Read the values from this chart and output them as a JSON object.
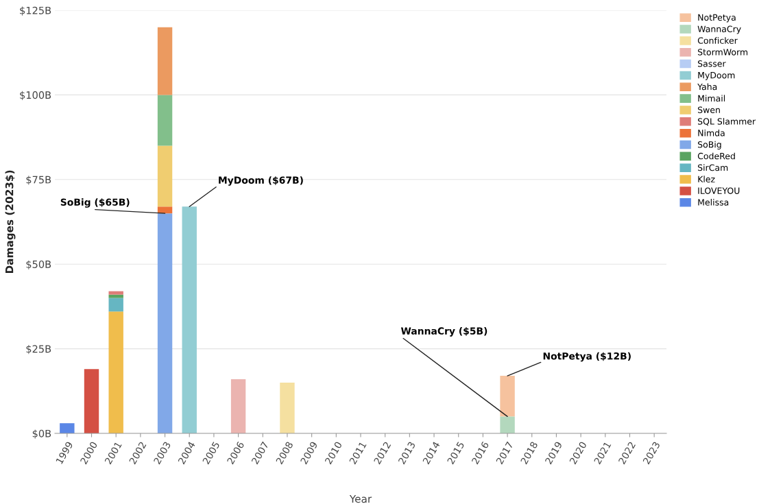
{
  "chart_data": {
    "type": "bar",
    "stacked": true,
    "xlabel": "Year",
    "ylabel": "Damages (2023$)",
    "categories": [
      "1999",
      "2000",
      "2001",
      "2002",
      "2003",
      "2004",
      "2005",
      "2006",
      "2007",
      "2008",
      "2009",
      "2010",
      "2011",
      "2012",
      "2013",
      "2014",
      "2015",
      "2016",
      "2017",
      "2018",
      "2019",
      "2020",
      "2021",
      "2022",
      "2023"
    ],
    "series": [
      {
        "name": "Melissa",
        "color": "#5b87e6",
        "values": [
          3,
          null,
          null,
          null,
          null,
          null,
          null,
          null,
          null,
          null,
          null,
          null,
          null,
          null,
          null,
          null,
          null,
          null,
          null,
          null,
          null,
          null,
          null,
          null,
          null
        ]
      },
      {
        "name": "ILOVEYOU",
        "color": "#d45044",
        "values": [
          null,
          19,
          null,
          null,
          null,
          null,
          null,
          null,
          null,
          null,
          null,
          null,
          null,
          null,
          null,
          null,
          null,
          null,
          null,
          null,
          null,
          null,
          null,
          null,
          null
        ]
      },
      {
        "name": "Klez",
        "color": "#f0bd4c",
        "values": [
          null,
          null,
          36,
          null,
          null,
          null,
          null,
          null,
          null,
          null,
          null,
          null,
          null,
          null,
          null,
          null,
          null,
          null,
          null,
          null,
          null,
          null,
          null,
          null,
          null
        ]
      },
      {
        "name": "SirCam",
        "color": "#66b6c2",
        "values": [
          null,
          null,
          4,
          null,
          null,
          null,
          null,
          null,
          null,
          null,
          null,
          null,
          null,
          null,
          null,
          null,
          null,
          null,
          null,
          null,
          null,
          null,
          null,
          null,
          null
        ]
      },
      {
        "name": "CodeRed",
        "color": "#5aa461",
        "values": [
          null,
          null,
          1,
          null,
          null,
          null,
          null,
          null,
          null,
          null,
          null,
          null,
          null,
          null,
          null,
          null,
          null,
          null,
          null,
          null,
          null,
          null,
          null,
          null,
          null
        ]
      },
      {
        "name": "SoBig",
        "color": "#81a8e8",
        "values": [
          null,
          null,
          null,
          null,
          65,
          null,
          null,
          null,
          null,
          null,
          null,
          null,
          null,
          null,
          null,
          null,
          null,
          null,
          null,
          null,
          null,
          null,
          null,
          null,
          null
        ]
      },
      {
        "name": "Nimda",
        "color": "#ec7339",
        "values": [
          null,
          null,
          null,
          null,
          2,
          null,
          null,
          null,
          null,
          null,
          null,
          null,
          null,
          null,
          null,
          null,
          null,
          null,
          null,
          null,
          null,
          null,
          null,
          null,
          null
        ]
      },
      {
        "name": "SQL Slammer",
        "color": "#df7d78",
        "values": [
          null,
          null,
          1,
          null,
          null,
          null,
          null,
          null,
          null,
          null,
          null,
          null,
          null,
          null,
          null,
          null,
          null,
          null,
          null,
          null,
          null,
          null,
          null,
          null,
          null
        ]
      },
      {
        "name": "Swen",
        "color": "#f0cd70",
        "values": [
          null,
          null,
          null,
          null,
          18,
          null,
          null,
          null,
          null,
          null,
          null,
          null,
          null,
          null,
          null,
          null,
          null,
          null,
          null,
          null,
          null,
          null,
          null,
          null,
          null
        ]
      },
      {
        "name": "Mimail",
        "color": "#82bf8b",
        "values": [
          null,
          null,
          null,
          null,
          15,
          null,
          null,
          null,
          null,
          null,
          null,
          null,
          null,
          null,
          null,
          null,
          null,
          null,
          null,
          null,
          null,
          null,
          null,
          null,
          null
        ]
      },
      {
        "name": "Yaha",
        "color": "#eb9a60",
        "values": [
          null,
          null,
          null,
          null,
          20,
          null,
          null,
          null,
          null,
          null,
          null,
          null,
          null,
          null,
          null,
          null,
          null,
          null,
          null,
          null,
          null,
          null,
          null,
          null,
          null
        ]
      },
      {
        "name": "MyDoom",
        "color": "#92cdd3",
        "values": [
          null,
          null,
          null,
          null,
          null,
          67,
          null,
          null,
          null,
          null,
          null,
          null,
          null,
          null,
          null,
          null,
          null,
          null,
          null,
          null,
          null,
          null,
          null,
          null,
          null
        ]
      },
      {
        "name": "Sasser",
        "color": "#b7cdf4",
        "values": [
          null,
          null,
          null,
          null,
          null,
          null,
          null,
          null,
          null,
          null,
          null,
          null,
          null,
          null,
          null,
          null,
          null,
          null,
          null,
          null,
          null,
          null,
          null,
          null,
          null
        ]
      },
      {
        "name": "StormWorm",
        "color": "#ebb4b0",
        "values": [
          null,
          null,
          null,
          null,
          null,
          null,
          null,
          16,
          null,
          null,
          null,
          null,
          null,
          null,
          null,
          null,
          null,
          null,
          null,
          null,
          null,
          null,
          null,
          null,
          null
        ]
      },
      {
        "name": "Conficker",
        "color": "#f5e0a0",
        "values": [
          null,
          null,
          null,
          null,
          null,
          null,
          null,
          null,
          null,
          15,
          null,
          null,
          null,
          null,
          null,
          null,
          null,
          null,
          null,
          null,
          null,
          null,
          null,
          null,
          null
        ]
      },
      {
        "name": "WannaCry",
        "color": "#b3d8bd",
        "values": [
          null,
          null,
          null,
          null,
          null,
          null,
          null,
          null,
          null,
          null,
          null,
          null,
          null,
          null,
          null,
          null,
          null,
          null,
          5,
          null,
          null,
          null,
          null,
          null,
          null
        ]
      },
      {
        "name": "NotPetya",
        "color": "#f6c29e",
        "values": [
          null,
          null,
          null,
          null,
          null,
          null,
          null,
          null,
          null,
          null,
          null,
          null,
          null,
          null,
          null,
          null,
          null,
          null,
          12,
          null,
          null,
          null,
          null,
          null,
          null
        ]
      }
    ],
    "ylim": [
      0,
      125
    ],
    "yticks": [
      {
        "value": 0,
        "label": "$0B"
      },
      {
        "value": 25,
        "label": "$25B"
      },
      {
        "value": 50,
        "label": "$50B"
      },
      {
        "value": 75,
        "label": "$75B"
      },
      {
        "value": 100,
        "label": "$100B"
      },
      {
        "value": 125,
        "label": "$125B"
      }
    ],
    "grid": "y",
    "legend": "top right",
    "annotations": [
      {
        "text": "SoBig ($65B)",
        "x": "2003",
        "y": 65
      },
      {
        "text": "MyDoom ($67B)",
        "x": "2004",
        "y": 67
      },
      {
        "text": "WannaCry ($5B)",
        "x": "2017",
        "y": 5
      },
      {
        "text": "NotPetya ($12B)",
        "x": "2017",
        "y": 17
      }
    ]
  }
}
